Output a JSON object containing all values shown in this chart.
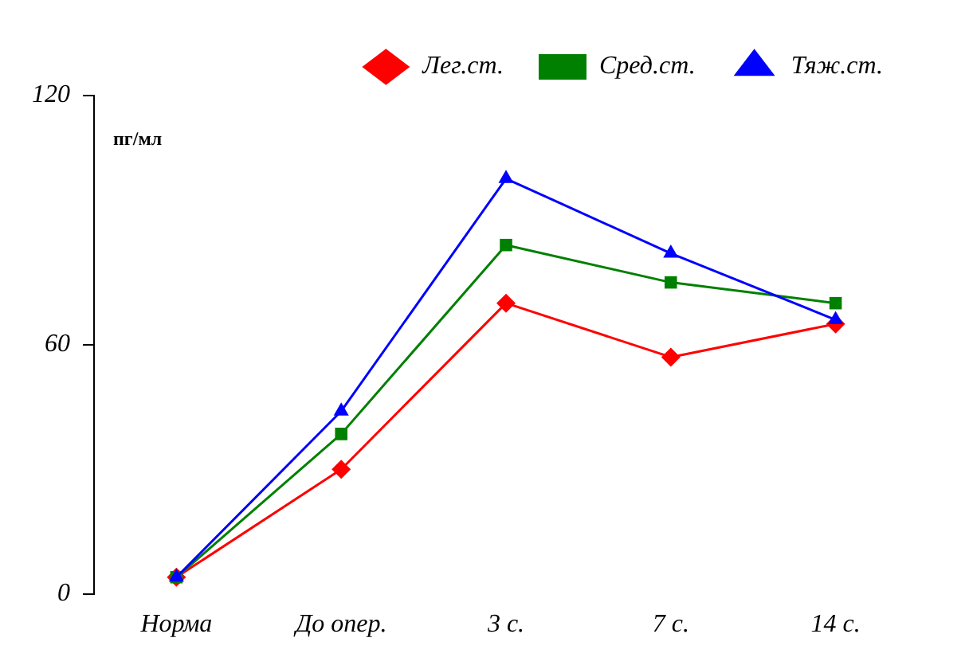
{
  "chart_data": {
    "type": "line",
    "ylabel": "пг/мл",
    "categories": [
      "Норма",
      "До опер.",
      "3 с.",
      "7 с.",
      "14 с."
    ],
    "series": [
      {
        "name": "Лег.ст.",
        "color": "#ff0000",
        "marker": "diamond",
        "values": [
          4,
          30,
          70,
          57,
          65
        ]
      },
      {
        "name": "Сред.ст.",
        "color": "#008000",
        "marker": "square",
        "values": [
          4,
          38.5,
          84,
          75,
          70
        ]
      },
      {
        "name": "Тяж.ст.",
        "color": "#0000ff",
        "marker": "triangle",
        "values": [
          4,
          44,
          100,
          82,
          66
        ]
      }
    ],
    "ylim": [
      0,
      120
    ],
    "yticks": [
      0,
      60,
      120
    ],
    "grid": false,
    "legend": "top"
  }
}
